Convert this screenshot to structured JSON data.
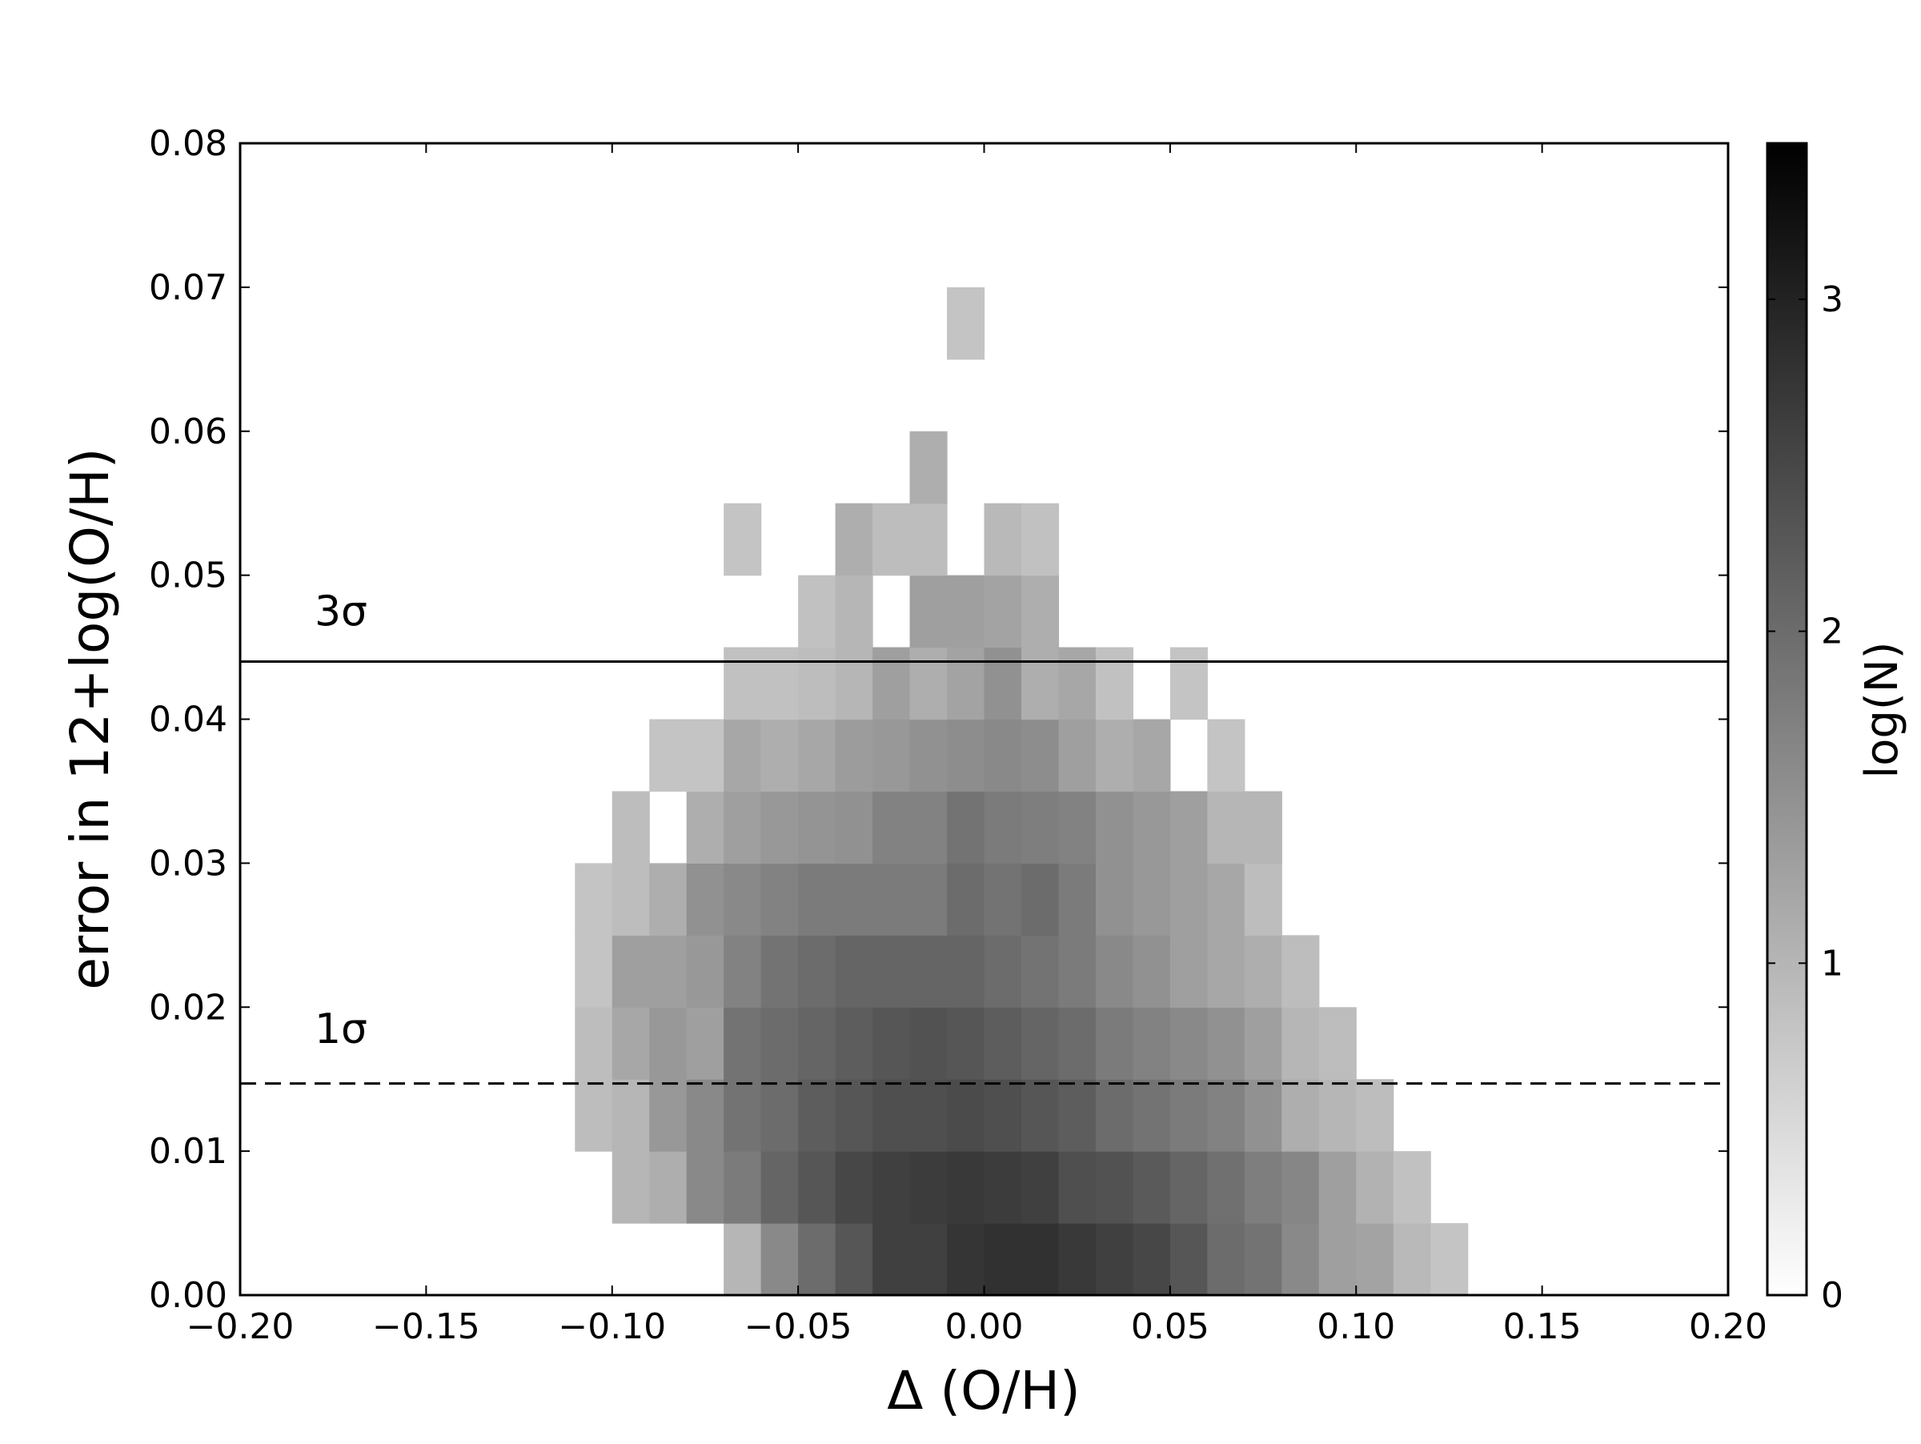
{
  "chart_data": {
    "type": "heatmap",
    "xlabel": "Δ (O/H)",
    "ylabel": "error in 12+log(O/H)",
    "colorbar_label": "log(N)",
    "colors": [
      "#ffffff",
      "#000000"
    ],
    "xlim": [
      -0.2,
      0.2
    ],
    "ylim": [
      0,
      0.08
    ],
    "clim": [
      0,
      3.47
    ],
    "xticks": [
      {
        "value": -0.2,
        "label": "−0.20"
      },
      {
        "value": -0.15,
        "label": "−0.15"
      },
      {
        "value": -0.1,
        "label": "−0.10"
      },
      {
        "value": -0.05,
        "label": "−0.05"
      },
      {
        "value": 0,
        "label": "0.00"
      },
      {
        "value": 0.05,
        "label": "0.05"
      },
      {
        "value": 0.1,
        "label": "0.10"
      },
      {
        "value": 0.15,
        "label": "0.15"
      },
      {
        "value": 0.2,
        "label": "0.20"
      }
    ],
    "yticks": [
      {
        "value": 0,
        "label": "0.00"
      },
      {
        "value": 0.01,
        "label": "0.01"
      },
      {
        "value": 0.02,
        "label": "0.02"
      },
      {
        "value": 0.03,
        "label": "0.03"
      },
      {
        "value": 0.04,
        "label": "0.04"
      },
      {
        "value": 0.05,
        "label": "0.05"
      },
      {
        "value": 0.06,
        "label": "0.06"
      },
      {
        "value": 0.07,
        "label": "0.07"
      },
      {
        "value": 0.08,
        "label": "0.08"
      }
    ],
    "cticks": [
      0,
      1,
      2,
      3
    ],
    "x_bins": [
      -0.11,
      -0.1,
      -0.09,
      -0.08,
      -0.07,
      -0.06,
      -0.05,
      -0.04,
      -0.03,
      -0.02,
      -0.01,
      0,
      0.01,
      0.02,
      0.03,
      0.04,
      0.05,
      0.06,
      0.07,
      0.08,
      0.09,
      0.1,
      0.11,
      0.12,
      0.13
    ],
    "y_bins": [
      0,
      0.005,
      0.01,
      0.015,
      0.02,
      0.025,
      0.03,
      0.035,
      0.04,
      0.045,
      0.05,
      0.055,
      0.06,
      0.065,
      0.07
    ],
    "values": [
      [
        null,
        null,
        null,
        null,
        1.0,
        1.6,
        2.0,
        2.3,
        2.6,
        2.6,
        2.75,
        2.8,
        2.8,
        2.7,
        2.6,
        2.5,
        2.3,
        2.0,
        1.9,
        1.6,
        1.3,
        1.25,
        0.95,
        0.8
      ],
      [
        null,
        1.0,
        1.1,
        1.6,
        1.8,
        2.1,
        2.3,
        2.5,
        2.6,
        2.65,
        2.7,
        2.65,
        2.6,
        2.4,
        2.35,
        2.25,
        2.1,
        1.95,
        1.75,
        1.65,
        1.3,
        1.05,
        0.85,
        null
      ],
      [
        0.9,
        1.0,
        1.4,
        1.6,
        1.9,
        2.0,
        2.2,
        2.3,
        2.4,
        2.4,
        2.45,
        2.4,
        2.3,
        2.2,
        2.0,
        1.9,
        1.8,
        1.7,
        1.5,
        1.1,
        1.0,
        0.9,
        null,
        null
      ],
      [
        0.9,
        1.2,
        1.4,
        1.3,
        1.9,
        2.0,
        2.1,
        2.2,
        2.3,
        2.35,
        2.3,
        2.2,
        2.1,
        2.0,
        1.8,
        1.7,
        1.6,
        1.5,
        1.3,
        1.0,
        0.9,
        null,
        null,
        null
      ],
      [
        0.8,
        1.3,
        1.3,
        1.4,
        1.7,
        1.9,
        2.0,
        2.1,
        2.1,
        2.1,
        2.1,
        2.0,
        1.9,
        1.8,
        1.6,
        1.5,
        1.3,
        1.2,
        1.1,
        0.9,
        null,
        null,
        null,
        null
      ],
      [
        0.8,
        0.9,
        1.1,
        1.5,
        1.6,
        1.7,
        1.8,
        1.8,
        1.8,
        1.8,
        2.0,
        1.9,
        2.0,
        1.8,
        1.5,
        1.4,
        1.3,
        1.2,
        0.9,
        null,
        null,
        null,
        null,
        null
      ],
      [
        null,
        0.9,
        null,
        1.1,
        1.3,
        1.4,
        1.45,
        1.5,
        1.7,
        1.7,
        1.9,
        1.8,
        1.75,
        1.7,
        1.5,
        1.4,
        1.3,
        1.0,
        1.0,
        null,
        null,
        null,
        null,
        null
      ],
      [
        null,
        null,
        0.8,
        0.8,
        1.2,
        1.1,
        1.2,
        1.35,
        1.4,
        1.5,
        1.55,
        1.6,
        1.55,
        1.3,
        1.1,
        1.2,
        null,
        0.8,
        null,
        null,
        null,
        null,
        null,
        null
      ],
      [
        null,
        null,
        null,
        null,
        0.85,
        0.85,
        0.9,
        1.0,
        1.3,
        1.1,
        1.25,
        1.5,
        1.1,
        1.2,
        0.85,
        null,
        0.8,
        null,
        null,
        null,
        null,
        null,
        null,
        null
      ],
      [
        null,
        null,
        null,
        null,
        null,
        null,
        0.85,
        1.0,
        null,
        1.3,
        1.3,
        1.25,
        1.1,
        null,
        null,
        null,
        null,
        null,
        null,
        null,
        null,
        null,
        null,
        null
      ],
      [
        null,
        null,
        null,
        null,
        0.8,
        null,
        null,
        1.1,
        0.9,
        0.9,
        null,
        0.95,
        0.85,
        null,
        null,
        null,
        null,
        null,
        null,
        null,
        null,
        null,
        null,
        null
      ],
      [
        null,
        null,
        null,
        null,
        null,
        null,
        null,
        null,
        null,
        1.1,
        null,
        null,
        null,
        null,
        null,
        null,
        null,
        null,
        null,
        null,
        null,
        null,
        null,
        null
      ],
      [
        null,
        null,
        null,
        null,
        null,
        null,
        null,
        null,
        null,
        null,
        null,
        null,
        null,
        null,
        null,
        null,
        null,
        null,
        null,
        null,
        null,
        null,
        null,
        null
      ],
      [
        null,
        null,
        null,
        null,
        null,
        null,
        null,
        null,
        null,
        null,
        0.8,
        null,
        null,
        null,
        null,
        null,
        null,
        null,
        null,
        null,
        null,
        null,
        null,
        null
      ]
    ],
    "hlines": [
      {
        "y": 0.044,
        "style": "solid",
        "label": "3σ",
        "label_x": -0.18,
        "label_y": 0.0465
      },
      {
        "y": 0.0147,
        "style": "dashed",
        "label": "1σ",
        "label_x": -0.18,
        "label_y": 0.0175
      }
    ]
  }
}
